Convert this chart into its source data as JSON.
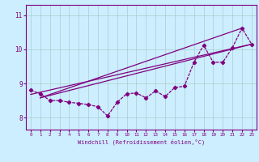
{
  "xlabel": "Windchill (Refroidissement éolien,°C)",
  "bg_color": "#cceeff",
  "line_color": "#800080",
  "grid_color": "#aacccc",
  "x_data": [
    0,
    1,
    2,
    3,
    4,
    5,
    6,
    7,
    8,
    9,
    10,
    11,
    12,
    13,
    14,
    15,
    16,
    17,
    18,
    19,
    20,
    21,
    22,
    23
  ],
  "y_data": [
    8.8,
    8.7,
    8.5,
    8.5,
    8.45,
    8.42,
    8.38,
    8.32,
    8.05,
    8.45,
    8.7,
    8.72,
    8.58,
    8.78,
    8.62,
    8.88,
    8.92,
    9.62,
    10.12,
    9.62,
    9.62,
    10.05,
    10.62,
    10.15
  ],
  "ylim": [
    7.65,
    11.3
  ],
  "yticks": [
    8,
    9,
    10,
    11
  ],
  "xticks": [
    0,
    1,
    2,
    3,
    4,
    5,
    6,
    7,
    8,
    9,
    10,
    11,
    12,
    13,
    14,
    15,
    16,
    17,
    18,
    19,
    20,
    21,
    22,
    23
  ],
  "trend1_x": [
    0,
    23
  ],
  "trend1_y": [
    8.68,
    10.15
  ],
  "trend2_x": [
    1,
    22
  ],
  "trend2_y": [
    8.58,
    10.62
  ],
  "trend3_x": [
    1,
    23
  ],
  "trend3_y": [
    8.58,
    10.15
  ]
}
